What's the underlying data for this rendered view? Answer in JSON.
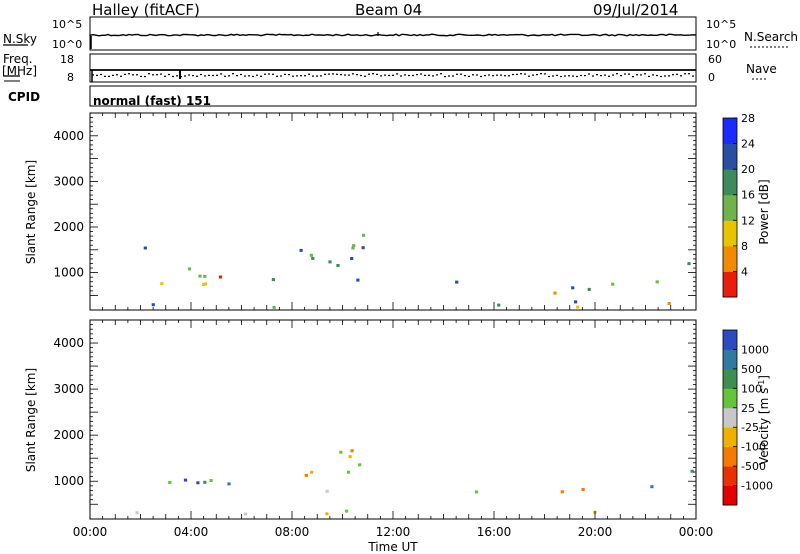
{
  "header": {
    "site": "Halley (fitACF)",
    "beam": "Beam 04",
    "date": "09/Jul/2014"
  },
  "strip_panels": {
    "nsky_label": "N.Sky",
    "nsky_ticks": [
      "10^5",
      "10^0"
    ],
    "nsearch_label": "N.Search",
    "nsearch_ticks": [
      "10^5",
      "10^0"
    ],
    "freq_label": "Freq.",
    "freq_unit": "[MHz]",
    "freq_ticks": [
      "18",
      "8"
    ],
    "nave_label": "Nave",
    "nave_ticks": [
      "60",
      "0"
    ],
    "cpid_label": "CPID",
    "cpid_value": "normal (fast) 151"
  },
  "chart_data": [
    {
      "type": "heatmap",
      "name": "power",
      "ylabel": "Slant Range [km]",
      "ylim": [
        180,
        4500
      ],
      "yticks": [
        "1000",
        "2000",
        "3000",
        "4000"
      ],
      "colorbar_label": "Power [dB]",
      "colorbar_ticks": [
        "4",
        "8",
        "12",
        "16",
        "20",
        "24",
        "28"
      ],
      "colorbar_colors": [
        "#1b2bff",
        "#2b4fa0",
        "#3d8a5c",
        "#6fb34a",
        "#e7c400",
        "#f08a00",
        "#e81d0a"
      ]
    },
    {
      "type": "heatmap",
      "name": "velocity",
      "ylabel": "Slant Range [km]",
      "ylim": [
        180,
        4500
      ],
      "yticks": [
        "1000",
        "2000",
        "3000",
        "4000"
      ],
      "colorbar_label": "Velocity [m s-1]",
      "colorbar_label_main": "Velocity [m s",
      "colorbar_label_exp": "-1",
      "colorbar_label_end": "]",
      "colorbar_ticks": [
        "1000",
        "500",
        "100",
        "25",
        "-25",
        "-100",
        "-500",
        "-1000"
      ],
      "colorbar_colors": [
        "#2d4bc0",
        "#2f7ba0",
        "#3c8f50",
        "#66c33c",
        "#c8c8c8",
        "#f0b000",
        "#f27a00",
        "#e83000",
        "#e00000"
      ]
    }
  ],
  "x_axis": {
    "xlabel": "Time UT",
    "xticks": [
      "00:00",
      "04:00",
      "08:00",
      "12:00",
      "16:00",
      "20:00",
      "00:00"
    ]
  }
}
